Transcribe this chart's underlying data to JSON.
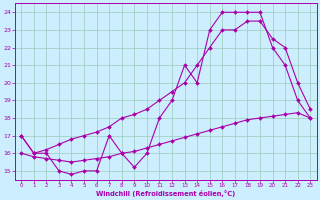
{
  "xlabel": "Windchill (Refroidissement éolien,°C)",
  "bg_color": "#cceeff",
  "grid_color": "#99ccbb",
  "line_color": "#aa00aa",
  "xlim": [
    -0.5,
    23.5
  ],
  "ylim": [
    14.5,
    24.5
  ],
  "xticks": [
    0,
    1,
    2,
    3,
    4,
    5,
    6,
    7,
    8,
    9,
    10,
    11,
    12,
    13,
    14,
    15,
    16,
    17,
    18,
    19,
    20,
    21,
    22,
    23
  ],
  "yticks": [
    15,
    16,
    17,
    18,
    19,
    20,
    21,
    22,
    23,
    24
  ],
  "line1_x": [
    0,
    1,
    2,
    3,
    4,
    5,
    6,
    7,
    8,
    9,
    10,
    11,
    12,
    13,
    14,
    15,
    16,
    17,
    18,
    19,
    20,
    21,
    22,
    23
  ],
  "line1_y": [
    17.0,
    16.0,
    16.0,
    15.0,
    14.8,
    15.0,
    15.0,
    17.0,
    16.0,
    15.2,
    16.0,
    18.0,
    19.0,
    21.0,
    20.0,
    23.0,
    24.0,
    24.0,
    24.0,
    24.0,
    22.0,
    21.0,
    19.0,
    18.0
  ],
  "line2_x": [
    0,
    1,
    2,
    3,
    4,
    5,
    6,
    7,
    8,
    9,
    10,
    11,
    12,
    13,
    14,
    15,
    16,
    17,
    18,
    19,
    20,
    21,
    22,
    23
  ],
  "line2_y": [
    17.0,
    16.0,
    16.2,
    16.5,
    16.8,
    17.0,
    17.2,
    17.5,
    18.0,
    18.2,
    18.5,
    19.0,
    19.5,
    20.0,
    21.0,
    22.0,
    23.0,
    23.0,
    23.5,
    23.5,
    22.5,
    22.0,
    20.0,
    18.5
  ],
  "line3_x": [
    0,
    1,
    2,
    3,
    4,
    5,
    6,
    7,
    8,
    9,
    10,
    11,
    12,
    13,
    14,
    15,
    16,
    17,
    18,
    19,
    20,
    21,
    22,
    23
  ],
  "line3_y": [
    16.0,
    15.8,
    15.7,
    15.6,
    15.5,
    15.6,
    15.7,
    15.8,
    16.0,
    16.1,
    16.3,
    16.5,
    16.7,
    16.9,
    17.1,
    17.3,
    17.5,
    17.7,
    17.9,
    18.0,
    18.1,
    18.2,
    18.3,
    18.0
  ],
  "markersize": 2.0,
  "linewidth": 0.8
}
